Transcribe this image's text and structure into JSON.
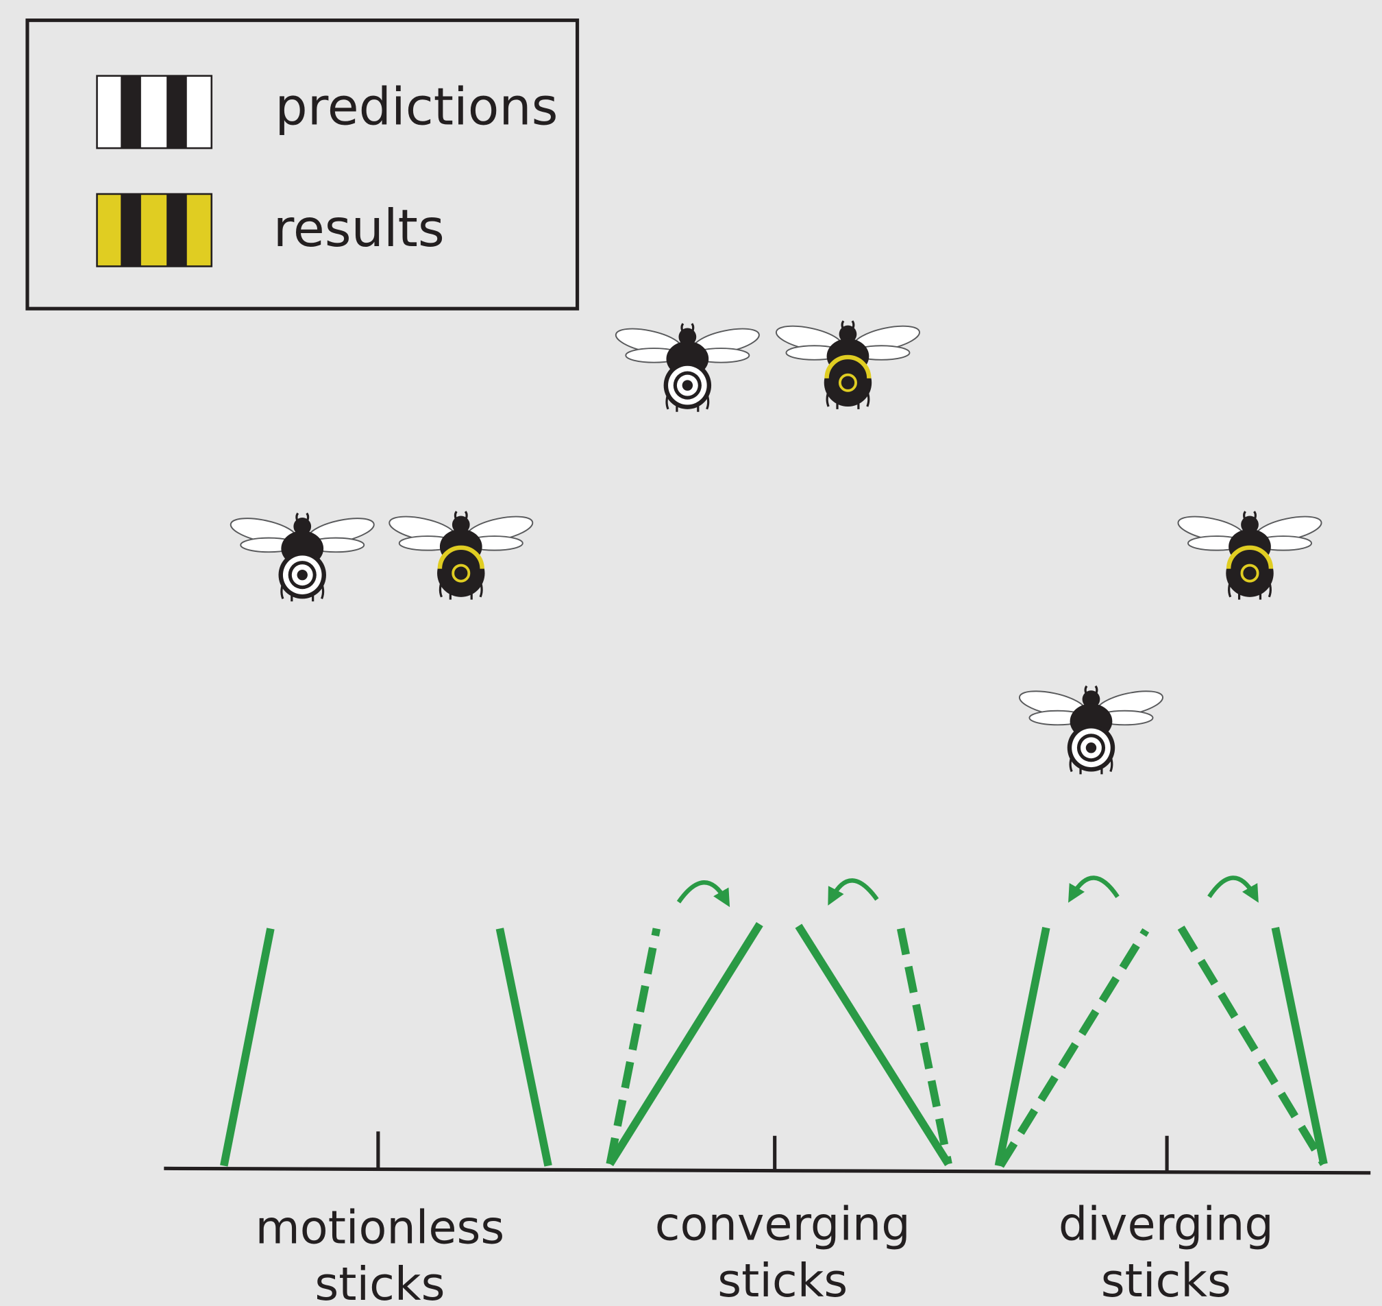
{
  "legend": {
    "items": [
      {
        "label": "predictions"
      },
      {
        "label": "results"
      }
    ]
  },
  "groups": [
    {
      "label": [
        "motionless",
        "sticks"
      ]
    },
    {
      "label": [
        "converging",
        "sticks"
      ]
    },
    {
      "label": [
        "diverging",
        "sticks"
      ]
    }
  ]
}
